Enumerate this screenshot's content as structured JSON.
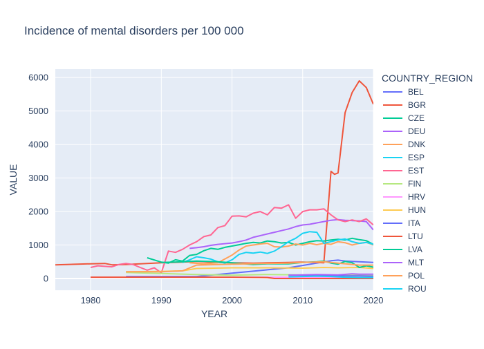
{
  "chart_data": {
    "type": "line",
    "title": "Incidence of mental disorders per 100 000",
    "xlabel": "YEAR",
    "ylabel": "VALUE",
    "xlim": [
      1975,
      2020
    ],
    "ylim": [
      -350,
      6250
    ],
    "x_ticks": [
      1980,
      1990,
      2000,
      2010,
      2020
    ],
    "y_ticks": [
      0,
      1000,
      2000,
      3000,
      4000,
      5000,
      6000
    ],
    "grid": true,
    "legend_title": "COUNTRY_REGION",
    "legend_position": "right",
    "series": [
      {
        "name": "BEL",
        "color": "#636efa",
        "points": [
          [
            1985,
            60
          ],
          [
            1990,
            60
          ],
          [
            1995,
            60
          ],
          [
            2000,
            160
          ],
          [
            2005,
            260
          ],
          [
            2008,
            320
          ],
          [
            2010,
            390
          ],
          [
            2012,
            460
          ],
          [
            2014,
            530
          ],
          [
            2015,
            550
          ],
          [
            2016,
            520
          ],
          [
            2018,
            500
          ],
          [
            2019,
            490
          ],
          [
            2020,
            480
          ]
        ]
      },
      {
        "name": "BGR",
        "color": "#ef553b",
        "points": [
          [
            1975,
            410
          ],
          [
            1980,
            440
          ],
          [
            1982,
            450
          ],
          [
            1983,
            410
          ],
          [
            1985,
            420
          ],
          [
            1987,
            440
          ],
          [
            1990,
            470
          ],
          [
            1993,
            490
          ],
          [
            1995,
            510
          ],
          [
            1998,
            480
          ],
          [
            2000,
            470
          ],
          [
            2003,
            460
          ],
          [
            2005,
            470
          ],
          [
            2008,
            480
          ],
          [
            2010,
            490
          ],
          [
            2012,
            480
          ],
          [
            2013,
            470
          ],
          [
            2014,
            3200
          ],
          [
            2014.5,
            3110
          ],
          [
            2015,
            3150
          ],
          [
            2016,
            4950
          ],
          [
            2017,
            5550
          ],
          [
            2018,
            5900
          ],
          [
            2019,
            5700
          ],
          [
            2020,
            5200
          ]
        ]
      },
      {
        "name": "CZE",
        "color": "#00cc96",
        "points": [
          [
            1988,
            620
          ],
          [
            1990,
            490
          ],
          [
            1991,
            460
          ],
          [
            1992,
            560
          ],
          [
            1993,
            520
          ],
          [
            1994,
            690
          ],
          [
            1995,
            720
          ],
          [
            1996,
            830
          ],
          [
            1997,
            900
          ],
          [
            1998,
            870
          ],
          [
            1999,
            930
          ],
          [
            2000,
            970
          ],
          [
            2001,
            1010
          ],
          [
            2002,
            1050
          ],
          [
            2003,
            1080
          ],
          [
            2004,
            1060
          ],
          [
            2005,
            1120
          ],
          [
            2006,
            1100
          ],
          [
            2007,
            1060
          ],
          [
            2008,
            1080
          ],
          [
            2009,
            1000
          ],
          [
            2010,
            1050
          ],
          [
            2011,
            1100
          ],
          [
            2012,
            1130
          ],
          [
            2013,
            1120
          ],
          [
            2014,
            1150
          ],
          [
            2015,
            1170
          ],
          [
            2016,
            1150
          ],
          [
            2017,
            1200
          ],
          [
            2018,
            1160
          ],
          [
            2019,
            1130
          ],
          [
            2020,
            1020
          ]
        ]
      },
      {
        "name": "DEU",
        "color": "#ab63fa",
        "points": [
          [
            1994,
            900
          ],
          [
            1995,
            920
          ],
          [
            1996,
            950
          ],
          [
            1997,
            990
          ],
          [
            1998,
            1020
          ],
          [
            1999,
            1040
          ],
          [
            2000,
            1060
          ],
          [
            2001,
            1100
          ],
          [
            2002,
            1150
          ],
          [
            2003,
            1230
          ],
          [
            2004,
            1280
          ],
          [
            2005,
            1330
          ],
          [
            2006,
            1380
          ],
          [
            2007,
            1430
          ],
          [
            2008,
            1480
          ],
          [
            2009,
            1550
          ],
          [
            2010,
            1600
          ],
          [
            2011,
            1620
          ],
          [
            2012,
            1660
          ],
          [
            2013,
            1700
          ],
          [
            2014,
            1740
          ],
          [
            2015,
            1760
          ],
          [
            2016,
            1740
          ],
          [
            2017,
            1730
          ],
          [
            2018,
            1720
          ],
          [
            2019,
            1700
          ],
          [
            2020,
            1450
          ]
        ]
      },
      {
        "name": "DNK",
        "color": "#ffa15a",
        "points": [
          [
            1994,
            470
          ],
          [
            1996,
            440
          ],
          [
            1998,
            470
          ],
          [
            2000,
            700
          ],
          [
            2001,
            850
          ],
          [
            2002,
            970
          ],
          [
            2003,
            1000
          ],
          [
            2004,
            1030
          ],
          [
            2005,
            1050
          ],
          [
            2006,
            950
          ],
          [
            2007,
            940
          ],
          [
            2008,
            970
          ],
          [
            2009,
            1030
          ],
          [
            2010,
            1000
          ],
          [
            2011,
            1050
          ],
          [
            2012,
            1010
          ],
          [
            2013,
            1050
          ],
          [
            2014,
            1020
          ],
          [
            2015,
            1100
          ],
          [
            2016,
            1070
          ],
          [
            2017,
            1000
          ],
          [
            2018,
            1050
          ],
          [
            2019,
            1080
          ],
          [
            2020,
            1000
          ]
        ]
      },
      {
        "name": "ESP",
        "color": "#19d3f3",
        "points": [
          [
            1993,
            480
          ],
          [
            1994,
            560
          ],
          [
            1995,
            650
          ],
          [
            1996,
            620
          ],
          [
            1997,
            580
          ],
          [
            1998,
            500
          ],
          [
            1999,
            460
          ],
          [
            2000,
            560
          ],
          [
            2001,
            720
          ],
          [
            2002,
            780
          ],
          [
            2003,
            760
          ],
          [
            2004,
            790
          ],
          [
            2005,
            750
          ],
          [
            2006,
            820
          ],
          [
            2007,
            950
          ],
          [
            2008,
            1100
          ],
          [
            2009,
            1200
          ],
          [
            2010,
            1350
          ],
          [
            2011,
            1400
          ],
          [
            2012,
            1380
          ],
          [
            2013,
            1050
          ],
          [
            2014,
            1100
          ],
          [
            2015,
            1150
          ],
          [
            2016,
            1180
          ],
          [
            2017,
            1100
          ],
          [
            2018,
            1050
          ],
          [
            2019,
            1080
          ],
          [
            2020,
            1020
          ]
        ]
      },
      {
        "name": "EST",
        "color": "#ff6692",
        "points": [
          [
            1980,
            330
          ],
          [
            1981,
            380
          ],
          [
            1983,
            350
          ],
          [
            1984,
            420
          ],
          [
            1985,
            450
          ],
          [
            1986,
            420
          ],
          [
            1987,
            330
          ],
          [
            1988,
            250
          ],
          [
            1989,
            320
          ],
          [
            1990,
            170
          ],
          [
            1991,
            820
          ],
          [
            1992,
            780
          ],
          [
            1993,
            870
          ],
          [
            1994,
            1000
          ],
          [
            1995,
            1100
          ],
          [
            1996,
            1250
          ],
          [
            1997,
            1300
          ],
          [
            1998,
            1520
          ],
          [
            1999,
            1580
          ],
          [
            2000,
            1860
          ],
          [
            2001,
            1870
          ],
          [
            2002,
            1840
          ],
          [
            2003,
            1950
          ],
          [
            2004,
            2000
          ],
          [
            2005,
            1900
          ],
          [
            2006,
            2120
          ],
          [
            2007,
            2100
          ],
          [
            2008,
            2200
          ],
          [
            2009,
            1800
          ],
          [
            2010,
            2000
          ],
          [
            2011,
            2050
          ],
          [
            2012,
            2050
          ],
          [
            2013,
            2080
          ],
          [
            2014,
            1900
          ],
          [
            2015,
            1750
          ],
          [
            2016,
            1700
          ],
          [
            2017,
            1750
          ],
          [
            2018,
            1700
          ],
          [
            2019,
            1780
          ],
          [
            2020,
            1600
          ]
        ]
      },
      {
        "name": "FIN",
        "color": "#b6e880",
        "points": [
          [
            1985,
            180
          ],
          [
            1990,
            150
          ],
          [
            1995,
            120
          ],
          [
            2000,
            100
          ],
          [
            2005,
            120
          ],
          [
            2010,
            110
          ],
          [
            2015,
            100
          ],
          [
            2020,
            90
          ]
        ]
      },
      {
        "name": "HRV",
        "color": "#ff97ff",
        "points": [
          [
            1980,
            40
          ],
          [
            1985,
            40
          ],
          [
            1990,
            40
          ],
          [
            1995,
            40
          ],
          [
            2000,
            40
          ],
          [
            2005,
            40
          ],
          [
            2010,
            40
          ],
          [
            2015,
            40
          ],
          [
            2020,
            30
          ]
        ]
      },
      {
        "name": "HUN",
        "color": "#fecb52",
        "points": [
          [
            1985,
            200
          ],
          [
            1990,
            210
          ],
          [
            1993,
            230
          ],
          [
            1995,
            300
          ],
          [
            2000,
            320
          ],
          [
            2005,
            320
          ],
          [
            2010,
            310
          ],
          [
            2013,
            330
          ],
          [
            2015,
            320
          ],
          [
            2018,
            330
          ],
          [
            2020,
            300
          ]
        ]
      },
      {
        "name": "ITA",
        "color": "#636efa",
        "points": [
          [
            2008,
            100
          ],
          [
            2010,
            100
          ],
          [
            2012,
            100
          ],
          [
            2014,
            90
          ],
          [
            2016,
            80
          ],
          [
            2018,
            80
          ],
          [
            2020,
            70
          ]
        ]
      },
      {
        "name": "LTU",
        "color": "#ef553b",
        "points": [
          [
            1980,
            40
          ],
          [
            1985,
            40
          ],
          [
            1990,
            40
          ],
          [
            1995,
            40
          ],
          [
            2000,
            40
          ],
          [
            2005,
            30
          ],
          [
            2006,
            0
          ],
          [
            2010,
            0
          ],
          [
            2015,
            0
          ],
          [
            2020,
            0
          ]
        ]
      },
      {
        "name": "LVA",
        "color": "#00cc96",
        "points": [
          [
            1990,
            480
          ],
          [
            1993,
            500
          ],
          [
            1995,
            520
          ],
          [
            1998,
            500
          ],
          [
            2000,
            470
          ],
          [
            2003,
            420
          ],
          [
            2005,
            440
          ],
          [
            2008,
            440
          ],
          [
            2010,
            480
          ],
          [
            2012,
            500
          ],
          [
            2013,
            520
          ],
          [
            2014,
            460
          ],
          [
            2015,
            430
          ],
          [
            2016,
            510
          ],
          [
            2017,
            470
          ],
          [
            2018,
            330
          ],
          [
            2019,
            380
          ],
          [
            2020,
            340
          ]
        ]
      },
      {
        "name": "MLT",
        "color": "#ab63fa",
        "points": [
          [
            2008,
            100
          ],
          [
            2010,
            110
          ],
          [
            2012,
            120
          ],
          [
            2015,
            110
          ],
          [
            2017,
            140
          ],
          [
            2018,
            130
          ],
          [
            2020,
            130
          ]
        ]
      },
      {
        "name": "POL",
        "color": "#ffa15a",
        "points": [
          [
            1985,
            200
          ],
          [
            1990,
            200
          ],
          [
            1993,
            230
          ],
          [
            1995,
            400
          ],
          [
            2000,
            430
          ],
          [
            2005,
            450
          ],
          [
            2008,
            460
          ],
          [
            2010,
            480
          ],
          [
            2013,
            500
          ],
          [
            2015,
            460
          ],
          [
            2018,
            400
          ],
          [
            2020,
            400
          ]
        ]
      },
      {
        "name": "ROU",
        "color": "#19d3f3",
        "points": [
          [
            2008,
            50
          ],
          [
            2010,
            60
          ],
          [
            2012,
            70
          ],
          [
            2014,
            60
          ],
          [
            2016,
            40
          ],
          [
            2018,
            30
          ],
          [
            2020,
            30
          ]
        ]
      }
    ]
  }
}
